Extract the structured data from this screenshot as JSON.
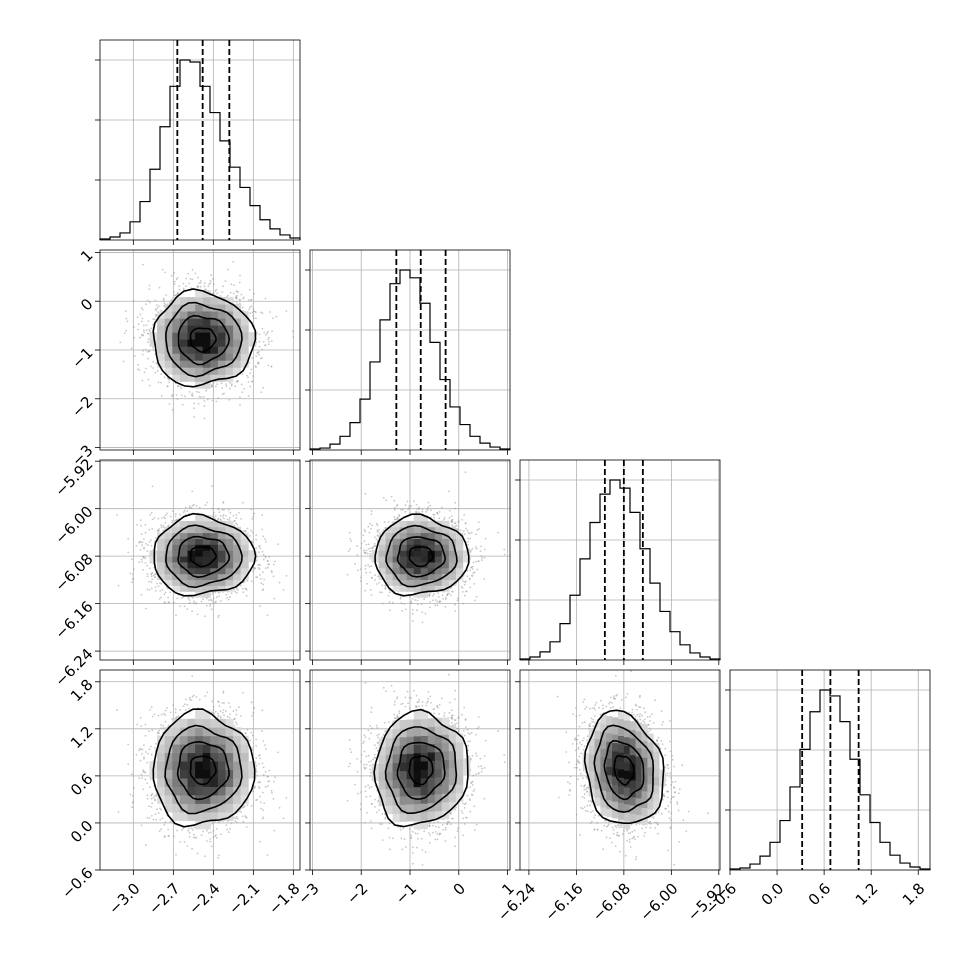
{
  "chart_data": {
    "type": "corner",
    "parameters": [
      {
        "index": 0,
        "mean": -2.48,
        "sd": 0.19,
        "range": [
          -3.25,
          -1.75
        ],
        "ticks": [
          -3.0,
          -2.7,
          -2.4,
          -2.1,
          -1.8
        ],
        "tick_labels": [
          "−3.0",
          "−2.7",
          "−2.4",
          "−2.1",
          "−1.8"
        ],
        "quantiles": [
          -2.67,
          -2.48,
          -2.28
        ]
      },
      {
        "index": 1,
        "mean": -0.78,
        "sd": 0.48,
        "range": [
          -3.05,
          1.05
        ],
        "ticks": [
          -3,
          -2,
          -1,
          0,
          1
        ],
        "tick_labels": [
          "−3",
          "−2",
          "−1",
          "0",
          "1"
        ],
        "quantiles": [
          -1.28,
          -0.78,
          -0.27
        ]
      },
      {
        "index": 2,
        "mean": -6.08,
        "sd": 0.033,
        "range": [
          -6.255,
          -5.918
        ],
        "ticks": [
          -6.24,
          -6.16,
          -6.08,
          -6.0,
          -5.92
        ],
        "tick_labels": [
          "−6.24",
          "−6.16",
          "−6.08",
          "−6.00",
          "−5.92"
        ],
        "quantiles": [
          -6.112,
          -6.08,
          -6.048
        ]
      },
      {
        "index": 3,
        "mean": 0.68,
        "sd": 0.36,
        "range": [
          -0.6,
          1.95
        ],
        "ticks": [
          -0.6,
          0.0,
          0.6,
          1.2,
          1.8
        ],
        "tick_labels": [
          "−0.6",
          "0.0",
          "0.6",
          "1.2",
          "1.8"
        ],
        "quantiles": [
          0.32,
          0.68,
          1.04
        ]
      }
    ],
    "histograms": [
      {
        "param": 0,
        "bins": 20,
        "counts": [
          1,
          3,
          7,
          18,
          38,
          70,
          112,
          152,
          178,
          176,
          152,
          126,
          98,
          72,
          52,
          34,
          20,
          11,
          5,
          2
        ]
      },
      {
        "param": 1,
        "bins": 20,
        "counts": [
          1,
          2,
          6,
          14,
          28,
          52,
          90,
          133,
          170,
          184,
          176,
          150,
          110,
          72,
          44,
          26,
          14,
          7,
          3,
          1
        ]
      },
      {
        "param": 2,
        "bins": 20,
        "counts": [
          1,
          3,
          8,
          18,
          36,
          64,
          100,
          136,
          164,
          178,
          170,
          146,
          110,
          76,
          48,
          28,
          15,
          7,
          3,
          1
        ]
      },
      {
        "param": 3,
        "bins": 20,
        "counts": [
          1,
          2,
          6,
          14,
          28,
          50,
          84,
          122,
          160,
          182,
          176,
          150,
          112,
          76,
          48,
          28,
          15,
          7,
          3,
          1
        ]
      }
    ],
    "pair_correlations": [
      {
        "row": 1,
        "col": 0,
        "rho": 0.0
      },
      {
        "row": 2,
        "col": 0,
        "rho": 0.0
      },
      {
        "row": 2,
        "col": 1,
        "rho": 0.0
      },
      {
        "row": 3,
        "col": 0,
        "rho": 0.0
      },
      {
        "row": 3,
        "col": 1,
        "rho": 0.05
      },
      {
        "row": 3,
        "col": 2,
        "rho": -0.15
      }
    ],
    "contour_levels_sigma": [
      0.5,
      1.0,
      1.5,
      2.0
    ],
    "samples_per_panel": 2600,
    "grid": true,
    "colors": {
      "axes": "#000000",
      "grid": "#b0b0b0",
      "samples": "#9a9a9a",
      "density_max": "#000000"
    }
  }
}
